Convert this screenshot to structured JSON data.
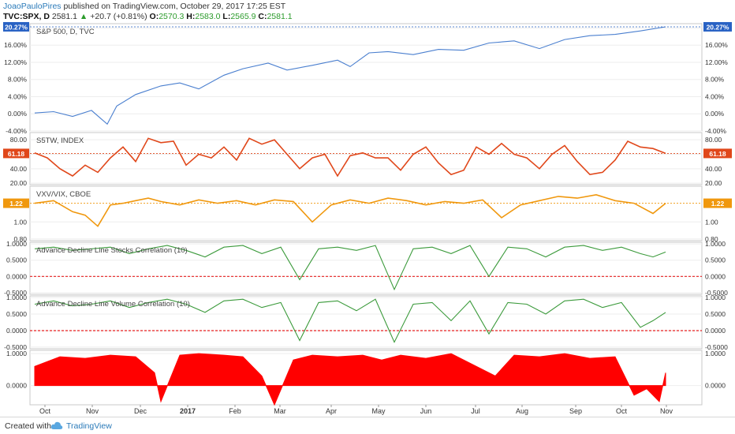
{
  "header": {
    "author": "JoaoPauloPires",
    "published": "published on TradingView.com, October 29, 2017 17:25 EST",
    "symbol": "TVC:SPX, D",
    "last": "2581.1",
    "change": "+20.7 (+0.81%)",
    "o_label": "O:",
    "o_value": "2570.3",
    "h_label": "H:",
    "h_value": "2583.0",
    "l_label": "L:",
    "l_value": "2565.9",
    "c_label": "C:",
    "c_value": "2581.1"
  },
  "footer": {
    "created_with": "Created with",
    "brand": "TradingView"
  },
  "colors": {
    "spx": "#4a7fcf",
    "s5tw": "#e0471a",
    "vxv": "#f0980e",
    "corr": "#3b9a3b",
    "zero": "#e82020",
    "fill": "#ff0000",
    "badge_blue": "#2962c4"
  },
  "chart_data": [
    {
      "type": "line",
      "title": "S&P 500, D, TVC",
      "ylim": [
        -4,
        21
      ],
      "ticks": [
        "20.00%",
        "16.00%",
        "12.00%",
        "8.00%",
        "4.00%",
        "0.00%",
        "-4.00%"
      ],
      "tick_values": [
        20,
        16,
        12,
        8,
        4,
        0,
        -4
      ],
      "last_label": "20.27%",
      "last_value": 20.27,
      "x": [
        0,
        0.03,
        0.06,
        0.09,
        0.115,
        0.13,
        0.16,
        0.2,
        0.23,
        0.26,
        0.3,
        0.33,
        0.37,
        0.4,
        0.44,
        0.48,
        0.5,
        0.53,
        0.56,
        0.6,
        0.64,
        0.68,
        0.72,
        0.76,
        0.8,
        0.84,
        0.88,
        0.92,
        0.96,
        1.0
      ],
      "values": [
        0.2,
        0.5,
        -0.6,
        0.8,
        -2.4,
        1.8,
        4.5,
        6.5,
        7.2,
        5.8,
        9.0,
        10.5,
        11.8,
        10.2,
        11.3,
        12.5,
        11.0,
        14.2,
        14.5,
        13.8,
        15.0,
        14.8,
        16.5,
        17.0,
        15.2,
        17.3,
        18.2,
        18.5,
        19.3,
        20.27
      ]
    },
    {
      "type": "line",
      "title": "S5TW, INDEX",
      "ylim": [
        18,
        90
      ],
      "ticks": [
        "80.00",
        "60.00",
        "40.00",
        "20.00"
      ],
      "tick_values": [
        80,
        60,
        40,
        20
      ],
      "last_label": "61.18",
      "last_value": 61.18,
      "x": [
        0,
        0.02,
        0.04,
        0.06,
        0.08,
        0.1,
        0.12,
        0.14,
        0.16,
        0.18,
        0.2,
        0.22,
        0.24,
        0.26,
        0.28,
        0.3,
        0.32,
        0.34,
        0.36,
        0.38,
        0.4,
        0.42,
        0.44,
        0.46,
        0.48,
        0.5,
        0.52,
        0.54,
        0.56,
        0.58,
        0.6,
        0.62,
        0.64,
        0.66,
        0.68,
        0.7,
        0.72,
        0.74,
        0.76,
        0.78,
        0.8,
        0.82,
        0.84,
        0.86,
        0.88,
        0.9,
        0.92,
        0.94,
        0.96,
        0.98,
        1.0
      ],
      "values": [
        62,
        55,
        40,
        30,
        45,
        35,
        55,
        70,
        50,
        82,
        76,
        78,
        45,
        60,
        55,
        70,
        52,
        82,
        74,
        80,
        60,
        40,
        55,
        60,
        30,
        58,
        62,
        55,
        55,
        38,
        60,
        70,
        48,
        32,
        38,
        70,
        60,
        75,
        60,
        55,
        40,
        60,
        72,
        50,
        32,
        35,
        52,
        78,
        70,
        68,
        61.18
      ]
    },
    {
      "type": "line",
      "title": "VXV/VIX, CBOE",
      "ylim": [
        0.78,
        1.42
      ],
      "ticks": [
        "1.00",
        "0.80"
      ],
      "tick_values": [
        1.0,
        0.8
      ],
      "last_label": "1.22",
      "last_value": 1.22,
      "x": [
        0,
        0.03,
        0.06,
        0.08,
        0.1,
        0.12,
        0.14,
        0.16,
        0.18,
        0.2,
        0.23,
        0.26,
        0.29,
        0.32,
        0.35,
        0.38,
        0.41,
        0.44,
        0.47,
        0.5,
        0.53,
        0.56,
        0.59,
        0.62,
        0.65,
        0.68,
        0.71,
        0.74,
        0.77,
        0.8,
        0.83,
        0.86,
        0.89,
        0.92,
        0.95,
        0.98,
        1.0
      ],
      "values": [
        1.22,
        1.25,
        1.12,
        1.08,
        0.95,
        1.2,
        1.22,
        1.25,
        1.28,
        1.24,
        1.2,
        1.26,
        1.22,
        1.25,
        1.2,
        1.26,
        1.24,
        1.0,
        1.2,
        1.26,
        1.22,
        1.28,
        1.25,
        1.2,
        1.24,
        1.22,
        1.26,
        1.05,
        1.2,
        1.25,
        1.3,
        1.28,
        1.32,
        1.25,
        1.22,
        1.1,
        1.22
      ]
    },
    {
      "type": "line",
      "title": "Advance Decline Line Stocks Correlation (10)",
      "ylim": [
        -0.55,
        1.05
      ],
      "ticks": [
        "1.0000",
        "0.5000",
        "0.0000",
        "-0.5000"
      ],
      "tick_values": [
        1,
        0.5,
        0,
        -0.5
      ],
      "zero_line": 0,
      "x": [
        0,
        0.03,
        0.06,
        0.09,
        0.12,
        0.15,
        0.18,
        0.21,
        0.24,
        0.27,
        0.3,
        0.33,
        0.36,
        0.39,
        0.42,
        0.45,
        0.48,
        0.51,
        0.54,
        0.57,
        0.6,
        0.63,
        0.66,
        0.69,
        0.72,
        0.75,
        0.78,
        0.81,
        0.84,
        0.87,
        0.9,
        0.93,
        0.96,
        0.98,
        1.0
      ],
      "values": [
        0.85,
        0.9,
        0.8,
        0.85,
        0.9,
        0.7,
        0.85,
        0.95,
        0.8,
        0.6,
        0.9,
        0.95,
        0.7,
        0.9,
        -0.1,
        0.85,
        0.9,
        0.8,
        0.95,
        -0.4,
        0.85,
        0.9,
        0.7,
        0.95,
        0.0,
        0.9,
        0.85,
        0.6,
        0.9,
        0.95,
        0.8,
        0.9,
        0.7,
        0.6,
        0.75
      ]
    },
    {
      "type": "line",
      "title": "Advance Decline Line Volume Correlation (10)",
      "ylim": [
        -0.55,
        1.05
      ],
      "ticks": [
        "1.0000",
        "0.5000",
        "0.0000",
        "-0.5000"
      ],
      "tick_values": [
        1,
        0.5,
        0,
        -0.5
      ],
      "zero_line": 0,
      "x": [
        0,
        0.03,
        0.06,
        0.09,
        0.12,
        0.15,
        0.18,
        0.21,
        0.24,
        0.27,
        0.3,
        0.33,
        0.36,
        0.39,
        0.42,
        0.45,
        0.48,
        0.51,
        0.54,
        0.57,
        0.6,
        0.63,
        0.66,
        0.69,
        0.72,
        0.75,
        0.78,
        0.81,
        0.84,
        0.87,
        0.9,
        0.93,
        0.96,
        0.98,
        1.0
      ],
      "values": [
        0.8,
        0.9,
        0.75,
        0.8,
        0.9,
        0.7,
        0.85,
        0.95,
        0.8,
        0.55,
        0.9,
        0.95,
        0.7,
        0.85,
        -0.3,
        0.85,
        0.9,
        0.6,
        0.95,
        -0.35,
        0.8,
        0.85,
        0.3,
        0.9,
        -0.1,
        0.85,
        0.8,
        0.5,
        0.9,
        0.95,
        0.7,
        0.85,
        0.1,
        0.3,
        0.55
      ]
    },
    {
      "type": "area",
      "title": "",
      "ylim": [
        -0.6,
        1.1
      ],
      "ticks": [
        "1.0000",
        "0.0000"
      ],
      "tick_values": [
        1,
        0
      ],
      "x": [
        0,
        0.04,
        0.08,
        0.12,
        0.16,
        0.19,
        0.2,
        0.23,
        0.26,
        0.3,
        0.33,
        0.36,
        0.38,
        0.41,
        0.44,
        0.48,
        0.52,
        0.55,
        0.58,
        0.62,
        0.66,
        0.7,
        0.73,
        0.76,
        0.8,
        0.84,
        0.88,
        0.92,
        0.95,
        0.97,
        0.99,
        1.0
      ],
      "values": [
        0.6,
        0.9,
        0.85,
        0.95,
        0.9,
        0.4,
        -0.5,
        0.95,
        1.0,
        0.95,
        0.9,
        0.3,
        -0.6,
        0.8,
        0.95,
        0.9,
        0.95,
        0.8,
        0.95,
        0.85,
        1.0,
        0.6,
        0.3,
        0.95,
        0.9,
        1.0,
        0.85,
        0.9,
        -0.3,
        -0.1,
        -0.5,
        0.4
      ]
    }
  ],
  "xaxis": {
    "labels": [
      "Oct",
      "Nov",
      "Dec",
      "2017",
      "Feb",
      "Mar",
      "Apr",
      "May",
      "Jun",
      "Jul",
      "Aug",
      "Sep",
      "Oct",
      "Nov"
    ],
    "bold_index": 3
  }
}
